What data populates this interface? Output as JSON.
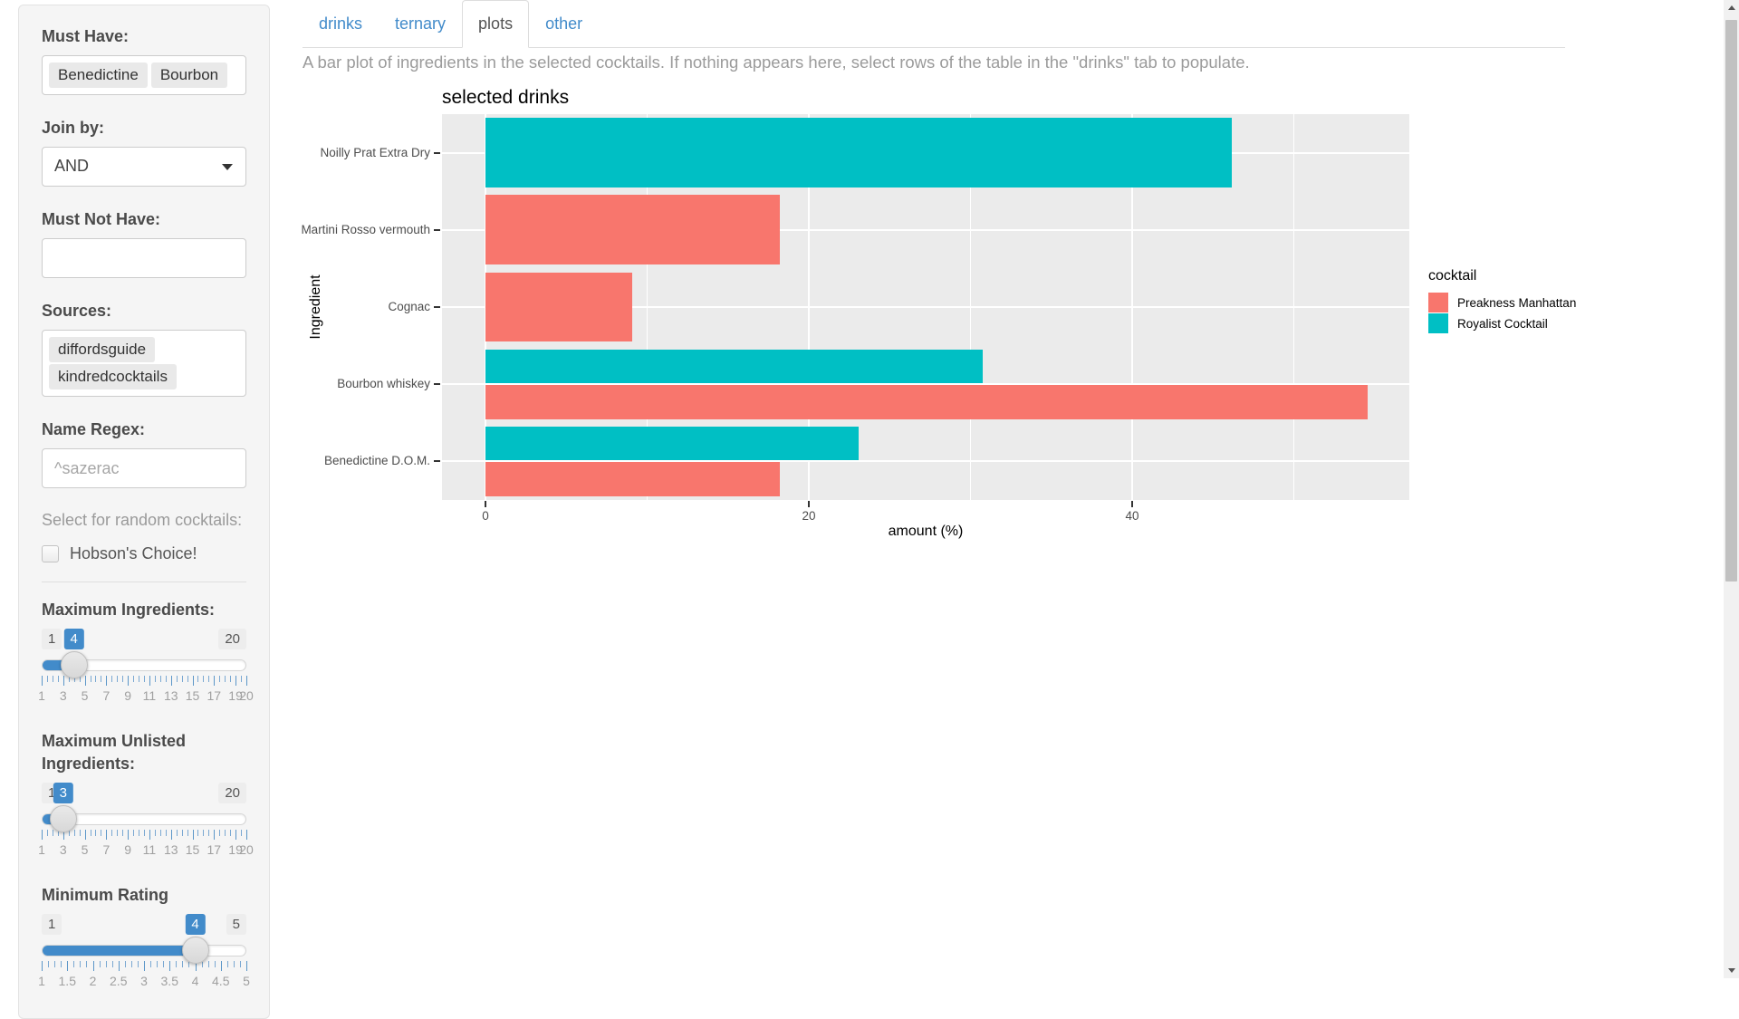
{
  "sidebar": {
    "must_have_label": "Must Have:",
    "must_have_tags": [
      "Benedictine",
      "Bourbon"
    ],
    "join_by_label": "Join by:",
    "join_by_value": "AND",
    "must_not_have_label": "Must Not Have:",
    "must_not_have_value": "",
    "sources_label": "Sources:",
    "sources_tags": [
      "diffordsguide",
      "kindredcocktails"
    ],
    "name_regex_label": "Name Regex:",
    "name_regex_placeholder": "^sazerac",
    "random_hint": "Select for random cocktails:",
    "hobsons_label": "Hobson's Choice!",
    "hobsons_checked": false,
    "accent_color": "#428bca",
    "sliders": [
      {
        "label": "Maximum Ingredients:",
        "min": 1,
        "max": 20,
        "value": 4,
        "min_label": "1",
        "max_label": "20",
        "value_label": "4",
        "tick_values": [
          1,
          3,
          5,
          7,
          9,
          11,
          13,
          15,
          17,
          19,
          20
        ],
        "tick_labels": [
          "1",
          "3",
          "5",
          "7",
          "9",
          "11",
          "13",
          "15",
          "17",
          "19",
          "20"
        ]
      },
      {
        "label": "Maximum Unlisted Ingredients:",
        "min": 1,
        "max": 20,
        "value": 3,
        "min_label": "1",
        "max_label": "20",
        "value_label": "3",
        "tick_values": [
          1,
          3,
          5,
          7,
          9,
          11,
          13,
          15,
          17,
          19,
          20
        ],
        "tick_labels": [
          "1",
          "3",
          "5",
          "7",
          "9",
          "11",
          "13",
          "15",
          "17",
          "19",
          "20"
        ]
      },
      {
        "label": "Minimum Rating",
        "min": 1,
        "max": 5,
        "value": 4,
        "min_label": "1",
        "max_label": "5",
        "value_label": "4",
        "tick_values": [
          1,
          1.5,
          2,
          2.5,
          3,
          3.5,
          4,
          4.5,
          5
        ],
        "tick_labels": [
          "1",
          "1.5",
          "2",
          "2.5",
          "3",
          "3.5",
          "4",
          "4.5",
          "5"
        ]
      }
    ]
  },
  "tabs": [
    {
      "label": "drinks",
      "active": false
    },
    {
      "label": "ternary",
      "active": false
    },
    {
      "label": "plots",
      "active": true
    },
    {
      "label": "other",
      "active": false
    }
  ],
  "tab_description": "A bar plot of ingredients in the selected cocktails. If nothing appears here, select rows of the table in the \"drinks\" tab to populate.",
  "chart_data": {
    "type": "bar",
    "orientation": "horizontal",
    "title": "selected drinks",
    "xlabel": "amount (%)",
    "ylabel": "Ingredient",
    "categories": [
      "Noilly Prat Extra Dry",
      "Martini Rosso vermouth",
      "Cognac",
      "Bourbon whiskey",
      "Benedictine D.O.M."
    ],
    "series": [
      {
        "name": "Preakness Manhattan",
        "color": "#F8766D",
        "values": [
          null,
          18.18,
          9.09,
          54.55,
          18.18
        ]
      },
      {
        "name": "Royalist Cocktail",
        "color": "#00BFC4",
        "values": [
          46.15,
          null,
          null,
          30.77,
          23.08
        ]
      }
    ],
    "x_ticks": [
      0,
      20,
      40
    ],
    "x_minor_gridlines": [
      10,
      30,
      50
    ],
    "xlim": [
      -2.7,
      57.1
    ],
    "legend_title": "cocktail",
    "legend_position": "right",
    "grid": true,
    "panel_background": "#EBEBEB",
    "gridline_color": "#FFFFFF"
  }
}
